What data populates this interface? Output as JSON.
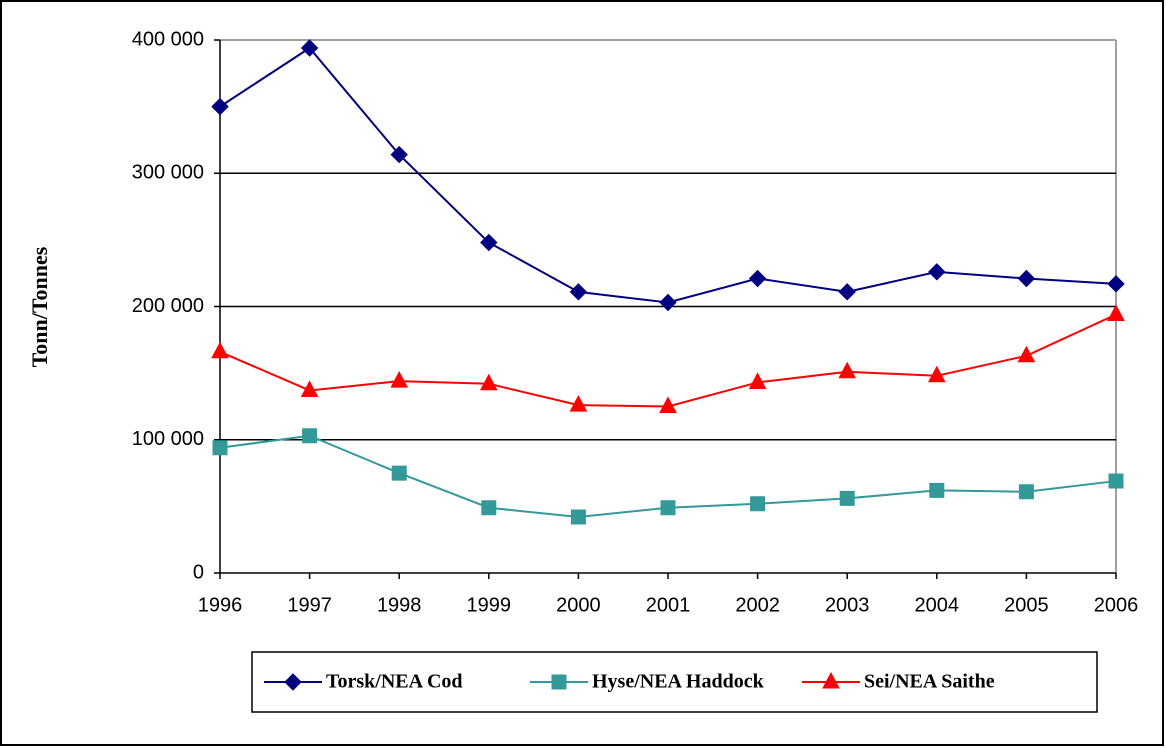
{
  "chart_data": {
    "type": "line",
    "y_label": "Tonn/Tonnes",
    "categories": [
      "1996",
      "1997",
      "1998",
      "1999",
      "2000",
      "2001",
      "2002",
      "2003",
      "2004",
      "2005",
      "2006"
    ],
    "series": [
      {
        "name": "Torsk/NEA Cod",
        "color": "#000080",
        "marker": "diamond",
        "values": [
          350000,
          394000,
          314000,
          248000,
          211000,
          203000,
          221000,
          211000,
          226000,
          221000,
          217000
        ]
      },
      {
        "name": "Hyse/NEA Haddock",
        "color": "#339999",
        "marker": "square",
        "values": [
          94000,
          103000,
          75000,
          49000,
          42000,
          49000,
          52000,
          56000,
          62000,
          61000,
          69000
        ]
      },
      {
        "name": "Sei/NEA Saithe",
        "color": "#ff0000",
        "marker": "triangle",
        "values": [
          166000,
          137000,
          144000,
          142000,
          126000,
          125000,
          143000,
          151000,
          148000,
          163000,
          194000
        ]
      }
    ],
    "ylim": [
      0,
      400000
    ],
    "yticks": [
      0,
      {
        "value": 100000,
        "label": "100 000"
      },
      {
        "value": 200000,
        "label": "200 000"
      },
      {
        "value": 300000,
        "label": "300 000"
      },
      {
        "value": 400000,
        "label": "400 000"
      }
    ],
    "grid": true,
    "legend": "bottom"
  }
}
